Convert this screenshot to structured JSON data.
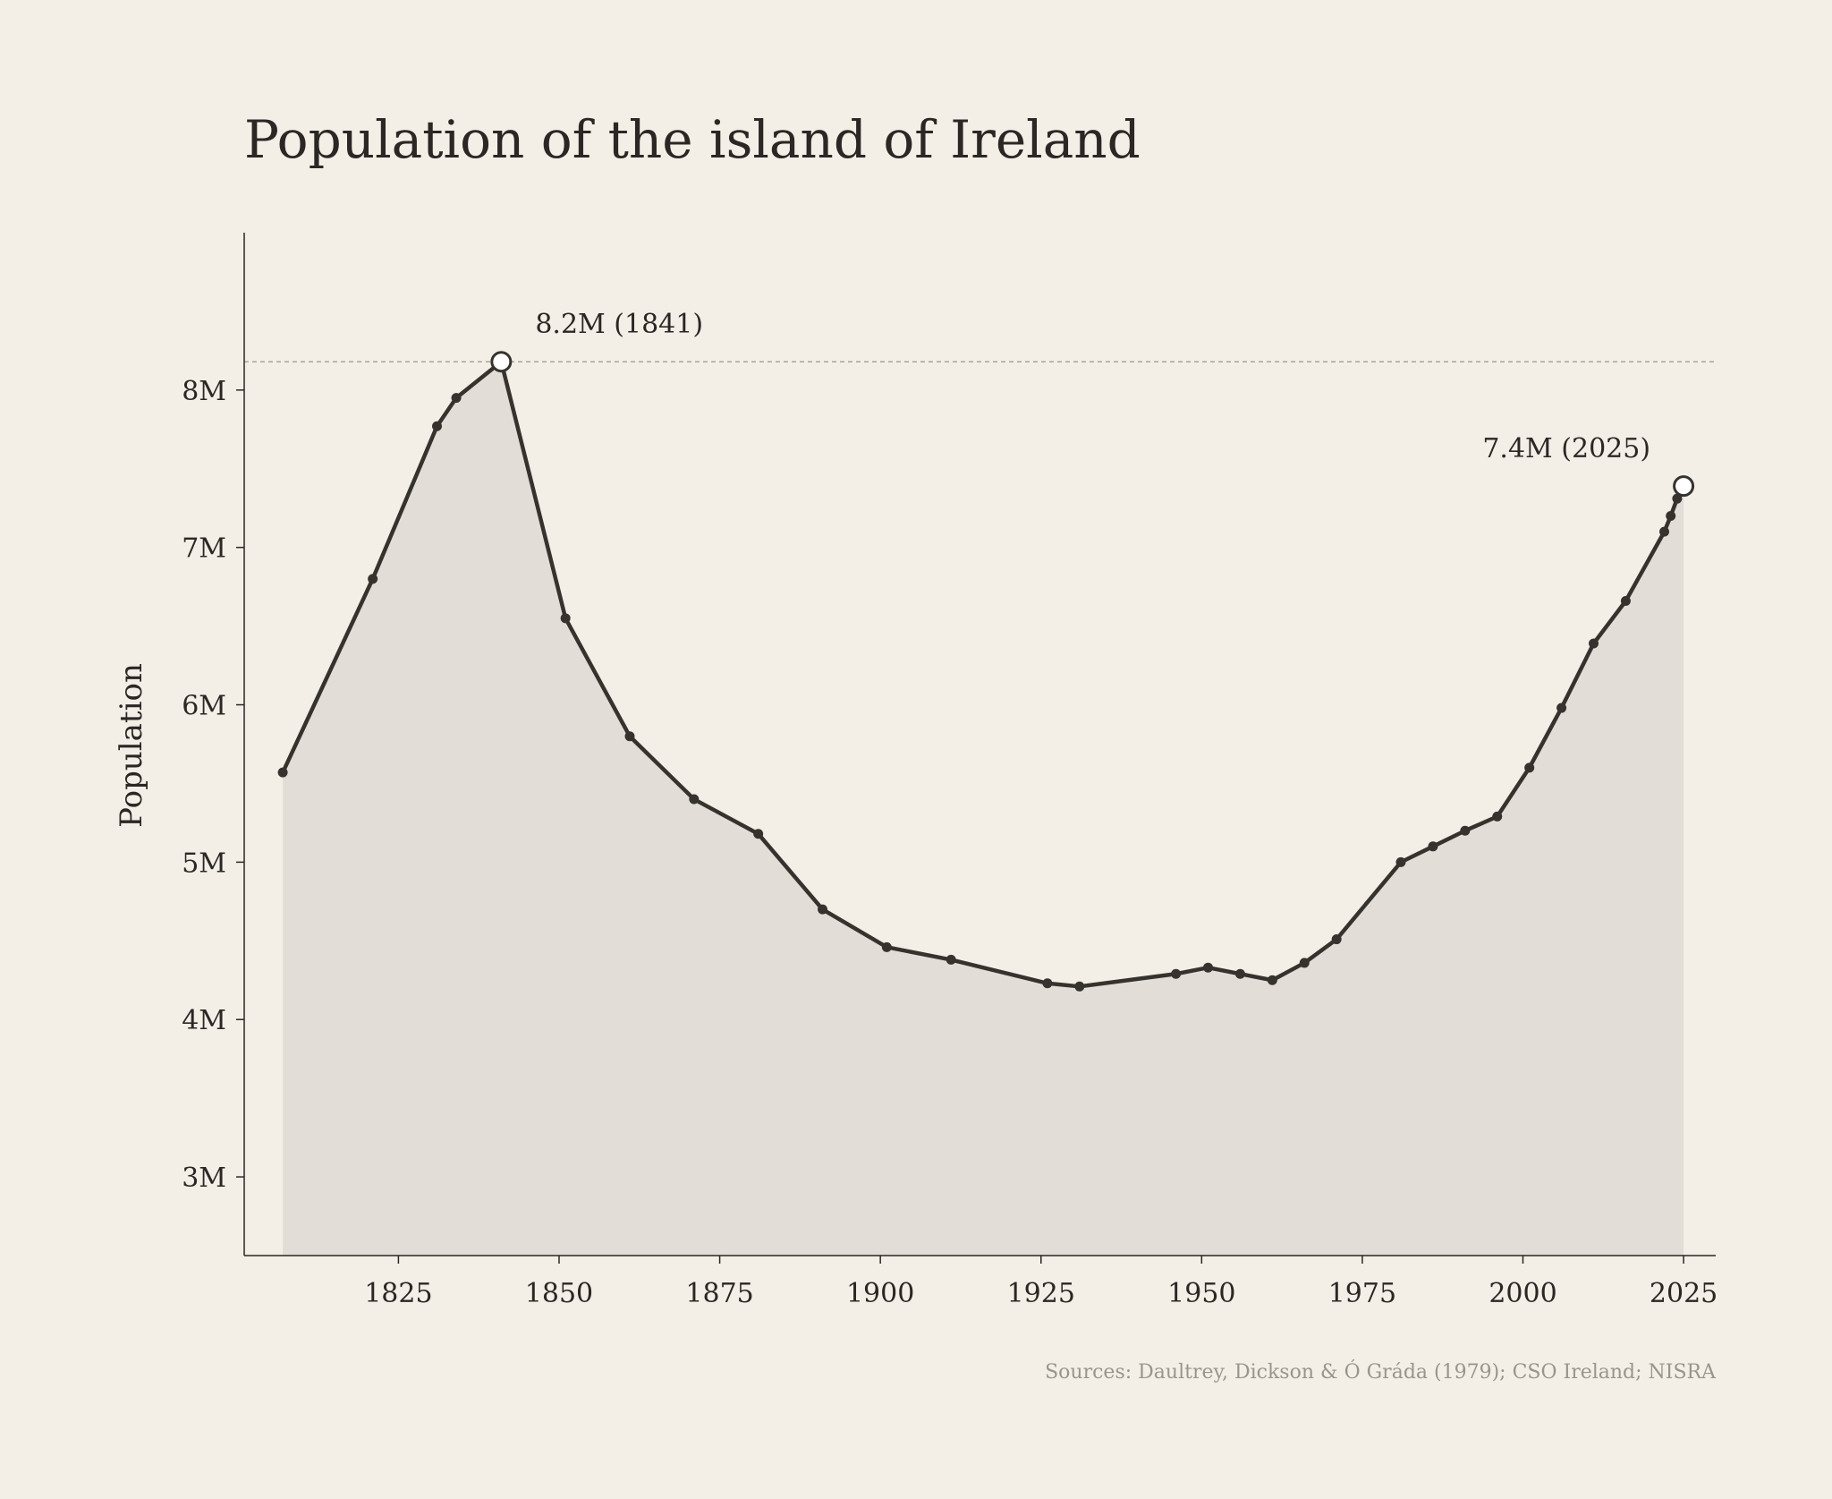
{
  "chart_data": {
    "type": "area",
    "title": "Population of the island of Ireland",
    "xlabel": "",
    "ylabel": "Population",
    "source": "Sources: Daultrey, Dickson & Ó Gráda (1979); CSO Ireland; NISRA",
    "xlim": [
      1801,
      2030
    ],
    "ylim": [
      2500000,
      9000000
    ],
    "x_ticks": [
      1825,
      1850,
      1875,
      1900,
      1925,
      1950,
      1975,
      2000,
      2025
    ],
    "x_tick_labels": [
      "1825",
      "1850",
      "1875",
      "1900",
      "1925",
      "1950",
      "1975",
      "2000",
      "2025"
    ],
    "y_ticks": [
      3000000,
      4000000,
      5000000,
      6000000,
      7000000,
      8000000
    ],
    "y_tick_labels": [
      "3M",
      "4M",
      "5M",
      "6M",
      "7M",
      "8M"
    ],
    "grid": false,
    "reference_line": {
      "y": 8180000,
      "style": "dashed"
    },
    "series": [
      {
        "name": "Population",
        "x": [
          1807,
          1821,
          1831,
          1834,
          1841,
          1851,
          1861,
          1871,
          1881,
          1891,
          1901,
          1911,
          1926,
          1931,
          1946,
          1951,
          1956,
          1961,
          1966,
          1971,
          1981,
          1986,
          1991,
          1996,
          2001,
          2006,
          2011,
          2016,
          2022,
          2023,
          2024,
          2025
        ],
        "y": [
          5570000,
          6800000,
          7770000,
          7950000,
          8180000,
          6550000,
          5800000,
          5400000,
          5180000,
          4700000,
          4460000,
          4380000,
          4230000,
          4210000,
          4290000,
          4330000,
          4290000,
          4250000,
          4360000,
          4510000,
          5000000,
          5100000,
          5200000,
          5290000,
          5600000,
          5980000,
          6390000,
          6660000,
          7100000,
          7200000,
          7310000,
          7390000
        ]
      }
    ],
    "annotations": [
      {
        "text": "8.2M (1841)",
        "x": 1841,
        "y": 8180000,
        "anchor": "upper-right"
      },
      {
        "text": "7.4M (2025)",
        "x": 2025,
        "y": 7390000,
        "anchor": "upper-left"
      }
    ],
    "colors": {
      "background": "#f3efe7",
      "line": "#36332f",
      "area": "#e2ded7",
      "reference_line": "#a8a39b",
      "axis": "#2a2724"
    }
  }
}
